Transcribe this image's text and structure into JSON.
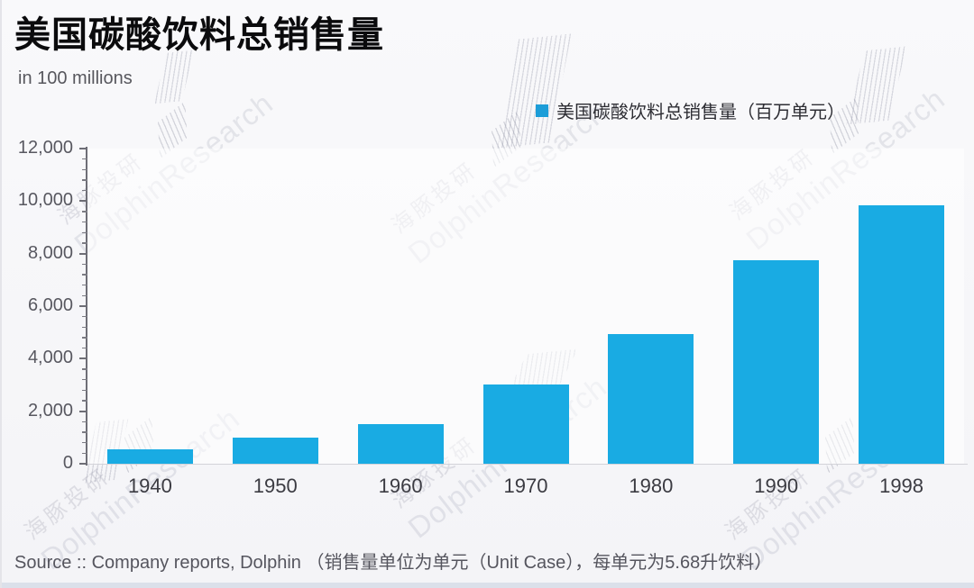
{
  "header": {
    "title": "美国碳酸饮料总销售量",
    "subtitle": "in 100 millions"
  },
  "legend": {
    "marker_color": "#1C9DD8",
    "label": "美国碳酸饮料总销售量（百万单元）"
  },
  "watermark": {
    "cn": "海豚投研",
    "en": "DolphinResearch"
  },
  "footer": {
    "source": "Source :: Company reports, Dolphin （销售量单位为单元（Unit Case），每单元为5.68升饮料）"
  },
  "chart_data": {
    "type": "bar",
    "title": "美国碳酸饮料总销售量",
    "series_name": "美国碳酸饮料总销售量（百万单元）",
    "categories": [
      "1940",
      "1950",
      "1960",
      "1970",
      "1980",
      "1990",
      "1998"
    ],
    "values": [
      550,
      1000,
      1500,
      3000,
      4950,
      7750,
      9850
    ],
    "xlabel": "",
    "ylabel": "in 100 millions",
    "ylim": [
      0,
      12000
    ],
    "ytick_step": 2000,
    "minor_tick_step": 400,
    "yticklabels": [
      "0",
      "2,000",
      "4,000",
      "6,000",
      "8,000",
      "10,000",
      "12,000"
    ],
    "bar_color": "#19ABE3",
    "grid": false,
    "legend_position": "top-right"
  }
}
